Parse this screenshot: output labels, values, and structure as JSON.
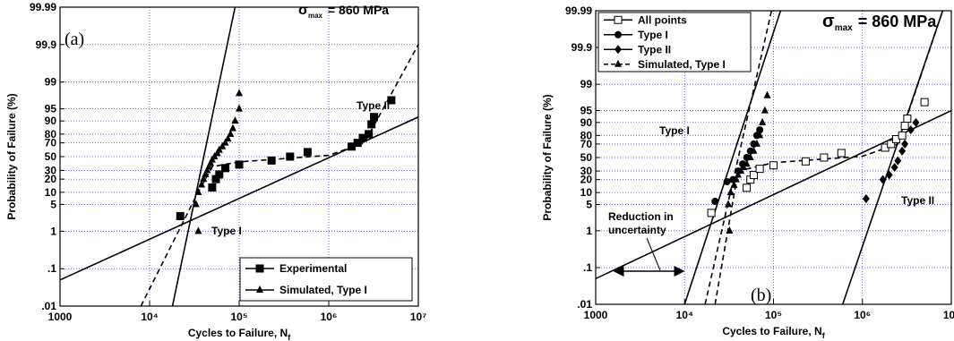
{
  "chart_data": [
    {
      "type": "scatter",
      "yscale": "logit",
      "xscale": "log",
      "grid": true,
      "legend": "lower right",
      "ylabel": "Probability of Failure  (%)",
      "xlabel": {
        "text": "Cycles to Failure,  N",
        "subscript": "f"
      },
      "panel_label": "(a)",
      "sigma_label": {
        "symbol": "σ",
        "subscript": "max",
        "text": "= 860 MPa"
      },
      "annotations": [
        "Type II",
        "Type I"
      ],
      "xlim": [
        1000,
        10000000
      ],
      "xticks": [
        1000,
        {
          "value": 10000,
          "label": "10⁴"
        },
        {
          "value": 100000,
          "label": "10⁵"
        },
        {
          "value": 1000000,
          "label": "10⁶"
        },
        {
          "value": 10000000,
          "label": "10⁷"
        }
      ],
      "ylim": [
        0.01,
        99.99
      ],
      "yticks": [
        {
          "value": 0.01,
          "label": ".01"
        },
        {
          "value": 0.1,
          "label": ".1"
        },
        1,
        5,
        10,
        20,
        30,
        50,
        70,
        80,
        90,
        95,
        99,
        99.9,
        99.99
      ],
      "series": [
        {
          "name": "Experimental",
          "color": "#000000",
          "marker": "square",
          "dash": false,
          "x": [
            22000,
            50000,
            55000,
            60000,
            70000,
            100000,
            230000,
            370000,
            580000,
            1800000,
            2100000,
            2400000,
            2800000,
            3000000,
            3200000,
            5000000
          ],
          "values": [
            2.5,
            13,
            20,
            25,
            33,
            38,
            44,
            50,
            57,
            65,
            70,
            76,
            80,
            88,
            92,
            97
          ]
        },
        {
          "name": "Simulated, Type I",
          "color": "#000000",
          "marker": "triangle",
          "dash": false,
          "x": [
            35000,
            33000,
            35000,
            38000,
            40000,
            42000,
            44000,
            46000,
            48000,
            50000,
            53000,
            57000,
            60000,
            65000,
            70000,
            75000,
            80000,
            85000,
            90000,
            100000,
            100000
          ],
          "values": [
            1,
            5,
            10,
            15,
            20,
            25,
            30,
            35,
            40,
            45,
            50,
            55,
            60,
            65,
            70,
            75,
            80,
            85,
            90,
            95,
            98
          ]
        }
      ],
      "fits": [
        {
          "dash": false,
          "x": [
            1000,
            10000000
          ],
          "values": [
            0.05,
            92
          ]
        },
        {
          "dash": false,
          "x": [
            18000,
            90000
          ],
          "values": [
            0.01,
            99.99
          ]
        },
        {
          "dash": true,
          "x": [
            8000,
            33000,
            50000,
            100000,
            1000000,
            2500000,
            10000000
          ],
          "values": [
            0.01,
            8,
            35,
            42,
            52,
            70,
            99.9
          ]
        }
      ]
    },
    {
      "type": "scatter",
      "yscale": "logit",
      "xscale": "log",
      "grid": true,
      "legend": "upper left",
      "ylabel": "Probability of Failure  (%)",
      "xlabel": {
        "text": "Cycles to Failure,  N",
        "subscript": "f"
      },
      "panel_label": "(b)",
      "sigma_label": {
        "symbol": "σ",
        "subscript": "max",
        "text": "= 860 MPa"
      },
      "annotations": [
        "Type I",
        "Type II",
        "Reduction in",
        "uncertainty"
      ],
      "xlim": [
        1000,
        10000000
      ],
      "xticks": [
        1000,
        {
          "value": 10000,
          "label": "10⁴"
        },
        {
          "value": 100000,
          "label": "10⁵"
        },
        {
          "value": 1000000,
          "label": "10⁶"
        },
        {
          "value": 10000000,
          "label": "10⁷"
        }
      ],
      "ylim": [
        0.01,
        99.99
      ],
      "yticks": [
        {
          "value": 0.01,
          "label": ".01"
        },
        {
          "value": 0.1,
          "label": ".1"
        },
        1,
        5,
        10,
        20,
        30,
        50,
        70,
        80,
        90,
        95,
        99,
        99.9,
        99.99
      ],
      "series": [
        {
          "name": "All points",
          "color": "#000000",
          "marker": "open-square",
          "dash": false,
          "x": [
            20000,
            50000,
            55000,
            60000,
            70000,
            100000,
            230000,
            370000,
            580000,
            1800000,
            2100000,
            2400000,
            2800000,
            3000000,
            3200000,
            5000000
          ],
          "values": [
            3,
            13,
            20,
            25,
            33,
            38,
            44,
            50,
            57,
            65,
            70,
            76,
            80,
            88,
            92,
            97
          ]
        },
        {
          "name": "Type I",
          "color": "#000000",
          "marker": "circle",
          "dash": false,
          "x": [
            22000,
            30000,
            35000,
            40000,
            45000,
            50000,
            55000,
            60000,
            65000,
            70000
          ],
          "values": [
            6,
            18,
            20,
            30,
            40,
            50,
            60,
            70,
            80,
            85
          ]
        },
        {
          "name": "Type II",
          "color": "#000000",
          "marker": "diamond",
          "dash": false,
          "x": [
            1100000,
            1700000,
            2000000,
            2300000,
            2500000,
            2800000,
            3000000,
            3500000,
            4000000
          ],
          "values": [
            7,
            20,
            25,
            35,
            45,
            60,
            70,
            85,
            90
          ]
        },
        {
          "name": "Simulated, Type I",
          "color": "#000000",
          "marker": "triangle",
          "dash": true,
          "x": [
            32000,
            31000,
            33000,
            36000,
            38000,
            40000,
            43000,
            46000,
            50000,
            55000,
            60000,
            65000,
            70000,
            75000,
            80000,
            85000
          ],
          "values": [
            1,
            5,
            10,
            15,
            20,
            25,
            30,
            35,
            40,
            50,
            60,
            70,
            80,
            90,
            95,
            98
          ]
        }
      ],
      "fits": [
        {
          "dash": false,
          "x": [
            1000,
            10000000
          ],
          "values": [
            0.05,
            95
          ]
        },
        {
          "dash": false,
          "x": [
            10000,
            120000
          ],
          "values": [
            0.01,
            99.99
          ]
        },
        {
          "dash": true,
          "x": [
            17000,
            95000
          ],
          "values": [
            0.01,
            99.99
          ]
        },
        {
          "dash": false,
          "x": [
            600000,
            8000000
          ],
          "values": [
            0.01,
            99.99
          ]
        },
        {
          "dash": true,
          "x": [
            22000,
            40000,
            100000,
            1000000,
            2500000,
            8000000
          ],
          "values": [
            0.01,
            30,
            42,
            52,
            70,
            99.99
          ]
        }
      ]
    }
  ]
}
